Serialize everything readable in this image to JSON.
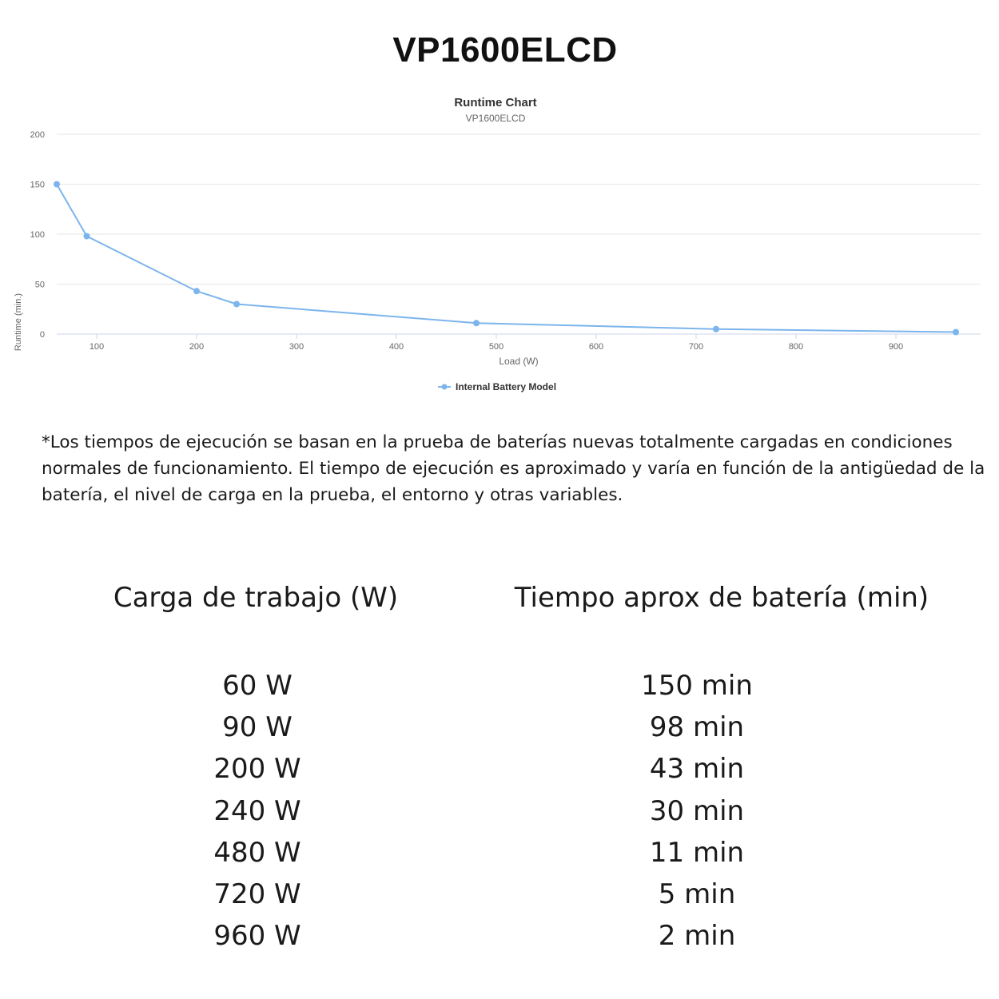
{
  "page": {
    "title": "VP1600ELCD",
    "note": "*Los tiempos de ejecución se basan en la prueba de baterías nuevas totalmente cargadas en condiciones normales de funcionamiento. El tiempo de ejecución es aproximado y varía en función de la antigüedad de la batería, el nivel de carga en la prueba, el entorno y otras variables."
  },
  "chart_data": {
    "type": "line",
    "title": "Runtime Chart",
    "subtitle": "VP1600ELCD",
    "xlabel": "Load (W)",
    "ylabel": "Runtime (min.)",
    "xlim": [
      60,
      960
    ],
    "ylim": [
      0,
      200
    ],
    "xticks": [
      100,
      200,
      300,
      400,
      500,
      600,
      700,
      800,
      900
    ],
    "yticks": [
      0,
      50,
      100,
      150,
      200
    ],
    "grid": true,
    "legend_position": "bottom-center",
    "series": [
      {
        "name": "Internal Battery Model",
        "color": "#7cb5ec",
        "points": [
          [
            60,
            150
          ],
          [
            90,
            98
          ],
          [
            200,
            43
          ],
          [
            240,
            30
          ],
          [
            480,
            11
          ],
          [
            720,
            5
          ],
          [
            960,
            2
          ]
        ]
      }
    ]
  },
  "table": {
    "headers": [
      "Carga de trabajo (W)",
      "Tiempo aprox de batería (min)"
    ],
    "rows": [
      [
        "60 W",
        "150 min"
      ],
      [
        "90 W",
        "98 min"
      ],
      [
        "200 W",
        "43 min"
      ],
      [
        "240 W",
        "30 min"
      ],
      [
        "480 W",
        "11 min"
      ],
      [
        "720 W",
        "5 min"
      ],
      [
        "960 W",
        "2 min"
      ]
    ]
  }
}
